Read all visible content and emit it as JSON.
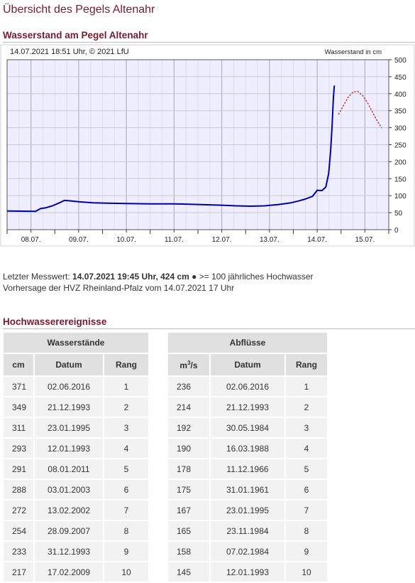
{
  "page": {
    "title": "Übersicht des Pegels Altenahr"
  },
  "section_wasserstand": {
    "title": "Wasserstand am Pegel Altenahr"
  },
  "chart_data": {
    "type": "line",
    "title": "14.07.2021 18:51 Uhr, © 2021 LfU",
    "ylabel": "Wasserstand in cm",
    "ylim": [
      0,
      500
    ],
    "yticks": [
      0,
      50,
      100,
      150,
      200,
      250,
      300,
      350,
      400,
      450,
      500
    ],
    "xlim": [
      7.5,
      15.5
    ],
    "x_tick_labels": [
      "08.07.",
      "09.07.",
      "10.07.",
      "11.07.",
      "12.07.",
      "13.07.",
      "14.07.",
      "15.07."
    ],
    "x_tick_positions": [
      8,
      9,
      10,
      11,
      12,
      13,
      14,
      15
    ],
    "grid": true,
    "colors": {
      "measured": "#0000aa",
      "forecast": "#cc2222",
      "plot_bg": "#eeeeff",
      "grid": "#c8c8d8"
    },
    "series": [
      {
        "style": "solid",
        "x": [
          7.5,
          8.1,
          8.2,
          8.3,
          8.45,
          8.6,
          8.7,
          8.8,
          9.0,
          9.3,
          9.6,
          10.0,
          10.5,
          11.0,
          11.5,
          12.0,
          12.3,
          12.6,
          12.9,
          13.2,
          13.45,
          13.6,
          13.75,
          13.9,
          14.0,
          14.1,
          14.18,
          14.24,
          14.28,
          14.31,
          14.34,
          14.36
        ],
        "y": [
          55,
          54,
          62,
          64,
          70,
          79,
          86,
          85,
          82,
          79,
          78,
          77,
          76,
          76,
          74,
          72,
          70,
          69,
          70,
          74,
          79,
          84,
          90,
          98,
          116,
          115,
          125,
          165,
          230,
          300,
          390,
          424
        ]
      },
      {
        "style": "dotted",
        "x": [
          14.45,
          14.55,
          14.65,
          14.75,
          14.85,
          14.95,
          15.05,
          15.15,
          15.25,
          15.35
        ],
        "y": [
          340,
          365,
          390,
          405,
          407,
          395,
          375,
          348,
          322,
          300
        ]
      }
    ]
  },
  "info": {
    "line1_prefix": "Letzter Messwert: ",
    "line1_value": "14.07.2021 19:45 Uhr, 424 cm",
    "line1_suffix": " >= 100 jährliches Hochwasser",
    "line2": "Vorhersage der HVZ Rheinland-Pfalz vom 14.07.2021 17 Uhr"
  },
  "section_hochwasser": {
    "title": "Hochwasserereignisse"
  },
  "wasserstaende": {
    "title": "Wasserstände",
    "headers": [
      "cm",
      "Datum",
      "Rang"
    ],
    "rows": [
      [
        "371",
        "02.06.2016",
        "1"
      ],
      [
        "349",
        "21.12.1993",
        "2"
      ],
      [
        "311",
        "23.01.1995",
        "3"
      ],
      [
        "293",
        "12.01.1993",
        "4"
      ],
      [
        "291",
        "08.01.2011",
        "5"
      ],
      [
        "288",
        "03.01.2003",
        "6"
      ],
      [
        "272",
        "13.02.2002",
        "7"
      ],
      [
        "254",
        "28.09.2007",
        "8"
      ],
      [
        "233",
        "31.12.1993",
        "9"
      ],
      [
        "217",
        "17.02.2009",
        "10"
      ]
    ]
  },
  "abfluesse": {
    "title": "Abflüsse",
    "header_unit": "m",
    "header_unit_sup": "3",
    "header_unit_suffix": "/s",
    "headers": [
      "Datum",
      "Rang"
    ],
    "rows": [
      [
        "236",
        "02.06.2016",
        "1"
      ],
      [
        "214",
        "21.12.1993",
        "2"
      ],
      [
        "192",
        "30.05.1984",
        "3"
      ],
      [
        "190",
        "16.03.1988",
        "4"
      ],
      [
        "178",
        "11.12.1966",
        "5"
      ],
      [
        "175",
        "31.01.1961",
        "6"
      ],
      [
        "167",
        "23.01.1995",
        "7"
      ],
      [
        "165",
        "23.11.1984",
        "8"
      ],
      [
        "158",
        "07.02.1984",
        "9"
      ],
      [
        "145",
        "12.01.1993",
        "10"
      ]
    ]
  }
}
